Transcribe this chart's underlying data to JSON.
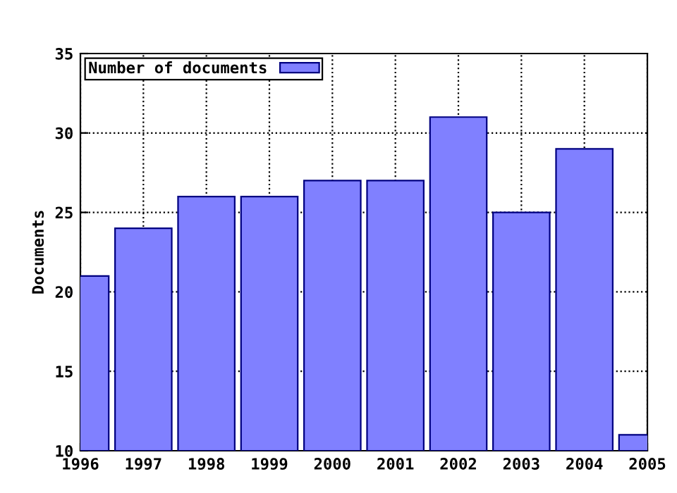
{
  "chart_data": {
    "type": "bar",
    "ylabel": "Documents",
    "x": [
      1996,
      1997,
      1998,
      1999,
      2000,
      2001,
      2002,
      2003,
      2004,
      2005
    ],
    "series": [
      {
        "name": "Number of documents",
        "color": "#8080ff",
        "values": [
          21,
          24,
          26,
          26,
          27,
          27,
          31,
          25,
          29,
          11
        ]
      }
    ],
    "xlim": [
      1996,
      2005
    ],
    "xticks": [
      1996,
      1997,
      1998,
      1999,
      2000,
      2001,
      2002,
      2003,
      2004,
      2005
    ],
    "ylim": [
      10,
      35
    ],
    "yticks": [
      10,
      15,
      20,
      25,
      30,
      35
    ],
    "grid": true,
    "legend": "top left"
  }
}
